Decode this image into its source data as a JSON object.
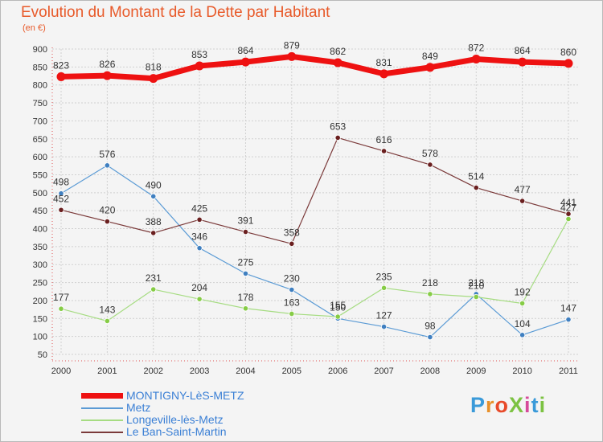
{
  "title": "Evolution du Montant de la Dette par Habitant",
  "subtitle": "(en €)",
  "brand": {
    "text": "ProXiti",
    "letter_colors": [
      "#3a9ad9",
      "#e8902a",
      "#e84a2a",
      "#7cc242",
      "#d64a9a",
      "#3a9ad9",
      "#7cc242"
    ]
  },
  "chart_data": {
    "type": "line",
    "title": "Evolution du Montant de la Dette par Habitant",
    "ylabel": "(en €)",
    "x": [
      "2000",
      "2001",
      "2002",
      "2003",
      "2004",
      "2005",
      "2006",
      "2007",
      "2008",
      "2009",
      "2010",
      "2011"
    ],
    "ylim": [
      50,
      900
    ],
    "yticks": [
      50,
      100,
      150,
      200,
      250,
      300,
      350,
      400,
      450,
      500,
      550,
      600,
      650,
      700,
      750,
      800,
      850,
      900
    ],
    "grid": true,
    "legend_position": "bottom-left",
    "series": [
      {
        "name": "MONTIGNY-LèS-METZ",
        "color": "#ee1111",
        "marker": "#ee1111",
        "width": 7,
        "values": [
          823,
          826,
          818,
          853,
          864,
          879,
          862,
          831,
          849,
          872,
          864,
          860
        ]
      },
      {
        "name": "Metz",
        "color": "#5b9bd5",
        "marker": "#3f7fc0",
        "width": 1.2,
        "values": [
          498,
          576,
          490,
          346,
          275,
          230,
          150,
          127,
          98,
          218,
          104,
          147
        ]
      },
      {
        "name": "Longeville-lès-Metz",
        "color": "#a6dc82",
        "marker": "#86cc46",
        "width": 1.2,
        "values": [
          177,
          143,
          231,
          204,
          178,
          163,
          155,
          235,
          218,
          210,
          192,
          427
        ]
      },
      {
        "name": "Le Ban-Saint-Martin",
        "color": "#7b3a3a",
        "marker": "#6a1f1f",
        "width": 1.2,
        "values": [
          452,
          420,
          388,
          425,
          391,
          358,
          653,
          616,
          578,
          514,
          477,
          441
        ]
      }
    ]
  }
}
